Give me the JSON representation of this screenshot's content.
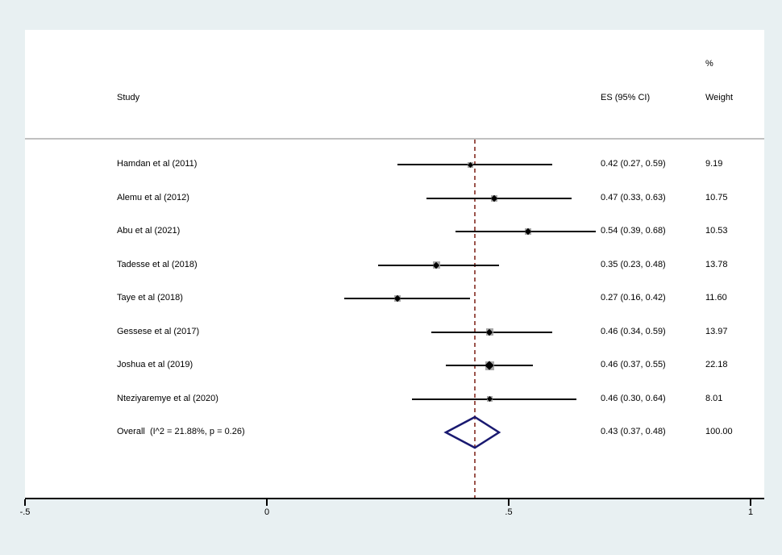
{
  "chart_data": {
    "type": "forest",
    "title": "",
    "columns": {
      "study": "Study",
      "es_ci": "ES (95% CI)",
      "percent": "%",
      "weight": "Weight"
    },
    "x_axis": {
      "tick_labels": [
        "-.5",
        "0",
        ".5",
        "1"
      ],
      "tick_values": [
        -0.5,
        0,
        0.5,
        1
      ],
      "xlim": [
        -0.5,
        1
      ],
      "grid": false
    },
    "reference_line": {
      "style": "dashed",
      "at": 0.43
    },
    "studies": [
      {
        "label": "Hamdan et al (2011)",
        "es": 0.42,
        "ci_low": 0.27,
        "ci_high": 0.59,
        "es_text": "0.42 (0.27, 0.59)",
        "weight": 9.19,
        "weight_text": "9.19"
      },
      {
        "label": "Alemu et al (2012)",
        "es": 0.47,
        "ci_low": 0.33,
        "ci_high": 0.63,
        "es_text": "0.47 (0.33, 0.63)",
        "weight": 10.75,
        "weight_text": "10.75"
      },
      {
        "label": "Abu et al (2021)",
        "es": 0.54,
        "ci_low": 0.39,
        "ci_high": 0.68,
        "es_text": "0.54 (0.39, 0.68)",
        "weight": 10.53,
        "weight_text": "10.53"
      },
      {
        "label": "Tadesse et al (2018)",
        "es": 0.35,
        "ci_low": 0.23,
        "ci_high": 0.48,
        "es_text": "0.35 (0.23, 0.48)",
        "weight": 13.78,
        "weight_text": "13.78"
      },
      {
        "label": "Taye et al (2018)",
        "es": 0.27,
        "ci_low": 0.16,
        "ci_high": 0.42,
        "es_text": "0.27 (0.16, 0.42)",
        "weight": 11.6,
        "weight_text": "11.60"
      },
      {
        "label": "Gessese et al (2017)",
        "es": 0.46,
        "ci_low": 0.34,
        "ci_high": 0.59,
        "es_text": "0.46 (0.34, 0.59)",
        "weight": 13.97,
        "weight_text": "13.97"
      },
      {
        "label": "Joshua et al (2019)",
        "es": 0.46,
        "ci_low": 0.37,
        "ci_high": 0.55,
        "es_text": "0.46 (0.37, 0.55)",
        "weight": 22.18,
        "weight_text": "22.18"
      },
      {
        "label": "Nteziyaremye et al (2020)",
        "es": 0.46,
        "ci_low": 0.3,
        "ci_high": 0.64,
        "es_text": "0.46 (0.30, 0.64)",
        "weight": 8.01,
        "weight_text": "8.01"
      }
    ],
    "overall": {
      "label": "Overall  (I^2 = 21.88%, p = 0.26)",
      "es": 0.43,
      "ci_low": 0.37,
      "ci_high": 0.48,
      "es_text": "0.43 (0.37, 0.48)",
      "weight_text": "100.00"
    },
    "colors": {
      "background": "#e8f0f2",
      "panel": "#ffffff",
      "separator": "#c0c0c0",
      "ci_line": "#000000",
      "marker_square": "#a9a9a9",
      "marker_diamond": "#000000",
      "overall_diamond": "#191970",
      "reference_dash": "#9b544c",
      "axis": "#000000"
    }
  }
}
